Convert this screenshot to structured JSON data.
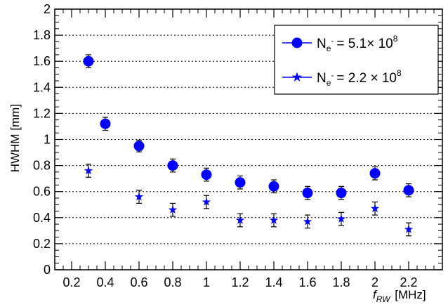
{
  "chart_data": {
    "type": "scatter",
    "xlabel": "f",
    "xlabel_sub": "RW",
    "xlabel_unit": "[MHz]",
    "ylabel": "HWHM [mm]",
    "xlim": [
      0.1,
      2.4
    ],
    "ylim": [
      0,
      2
    ],
    "x_ticks": [
      "0.2",
      "0.4",
      "0.6",
      "0.8",
      "1",
      "1.2",
      "1.4",
      "1.6",
      "1.8",
      "2",
      "2.2"
    ],
    "y_ticks": [
      "0",
      "0.2",
      "0.4",
      "0.6",
      "0.8",
      "1",
      "1.2",
      "1.4",
      "1.6",
      "1.8",
      "2"
    ],
    "grid": "horizontal-dotted",
    "legend_position": "top-right",
    "series": [
      {
        "legend_base": "N",
        "legend_sub": "e",
        "legend_sup": "-",
        "legend_value": "= 5.1× 10",
        "legend_exp": "8",
        "marker": "circle",
        "color": "#0000ff",
        "x": [
          0.3,
          0.4,
          0.6,
          0.8,
          1.0,
          1.2,
          1.4,
          1.6,
          1.8,
          2.0,
          2.2
        ],
        "y": [
          1.6,
          1.12,
          0.95,
          0.8,
          0.73,
          0.67,
          0.64,
          0.59,
          0.59,
          0.74,
          0.61
        ],
        "err": [
          0.05,
          0.05,
          0.045,
          0.05,
          0.05,
          0.05,
          0.05,
          0.05,
          0.05,
          0.05,
          0.05
        ]
      },
      {
        "legend_base": "N",
        "legend_sub": "e",
        "legend_sup": "-",
        "legend_value": "= 2.2 × 10",
        "legend_exp": "8",
        "marker": "star",
        "color": "#0000ff",
        "x": [
          0.3,
          0.6,
          0.8,
          1.0,
          1.2,
          1.4,
          1.6,
          1.8,
          2.0,
          2.2
        ],
        "y": [
          0.76,
          0.56,
          0.46,
          0.52,
          0.38,
          0.38,
          0.37,
          0.39,
          0.47,
          0.31
        ],
        "err": [
          0.05,
          0.05,
          0.05,
          0.05,
          0.05,
          0.05,
          0.05,
          0.05,
          0.05,
          0.05
        ]
      }
    ]
  }
}
